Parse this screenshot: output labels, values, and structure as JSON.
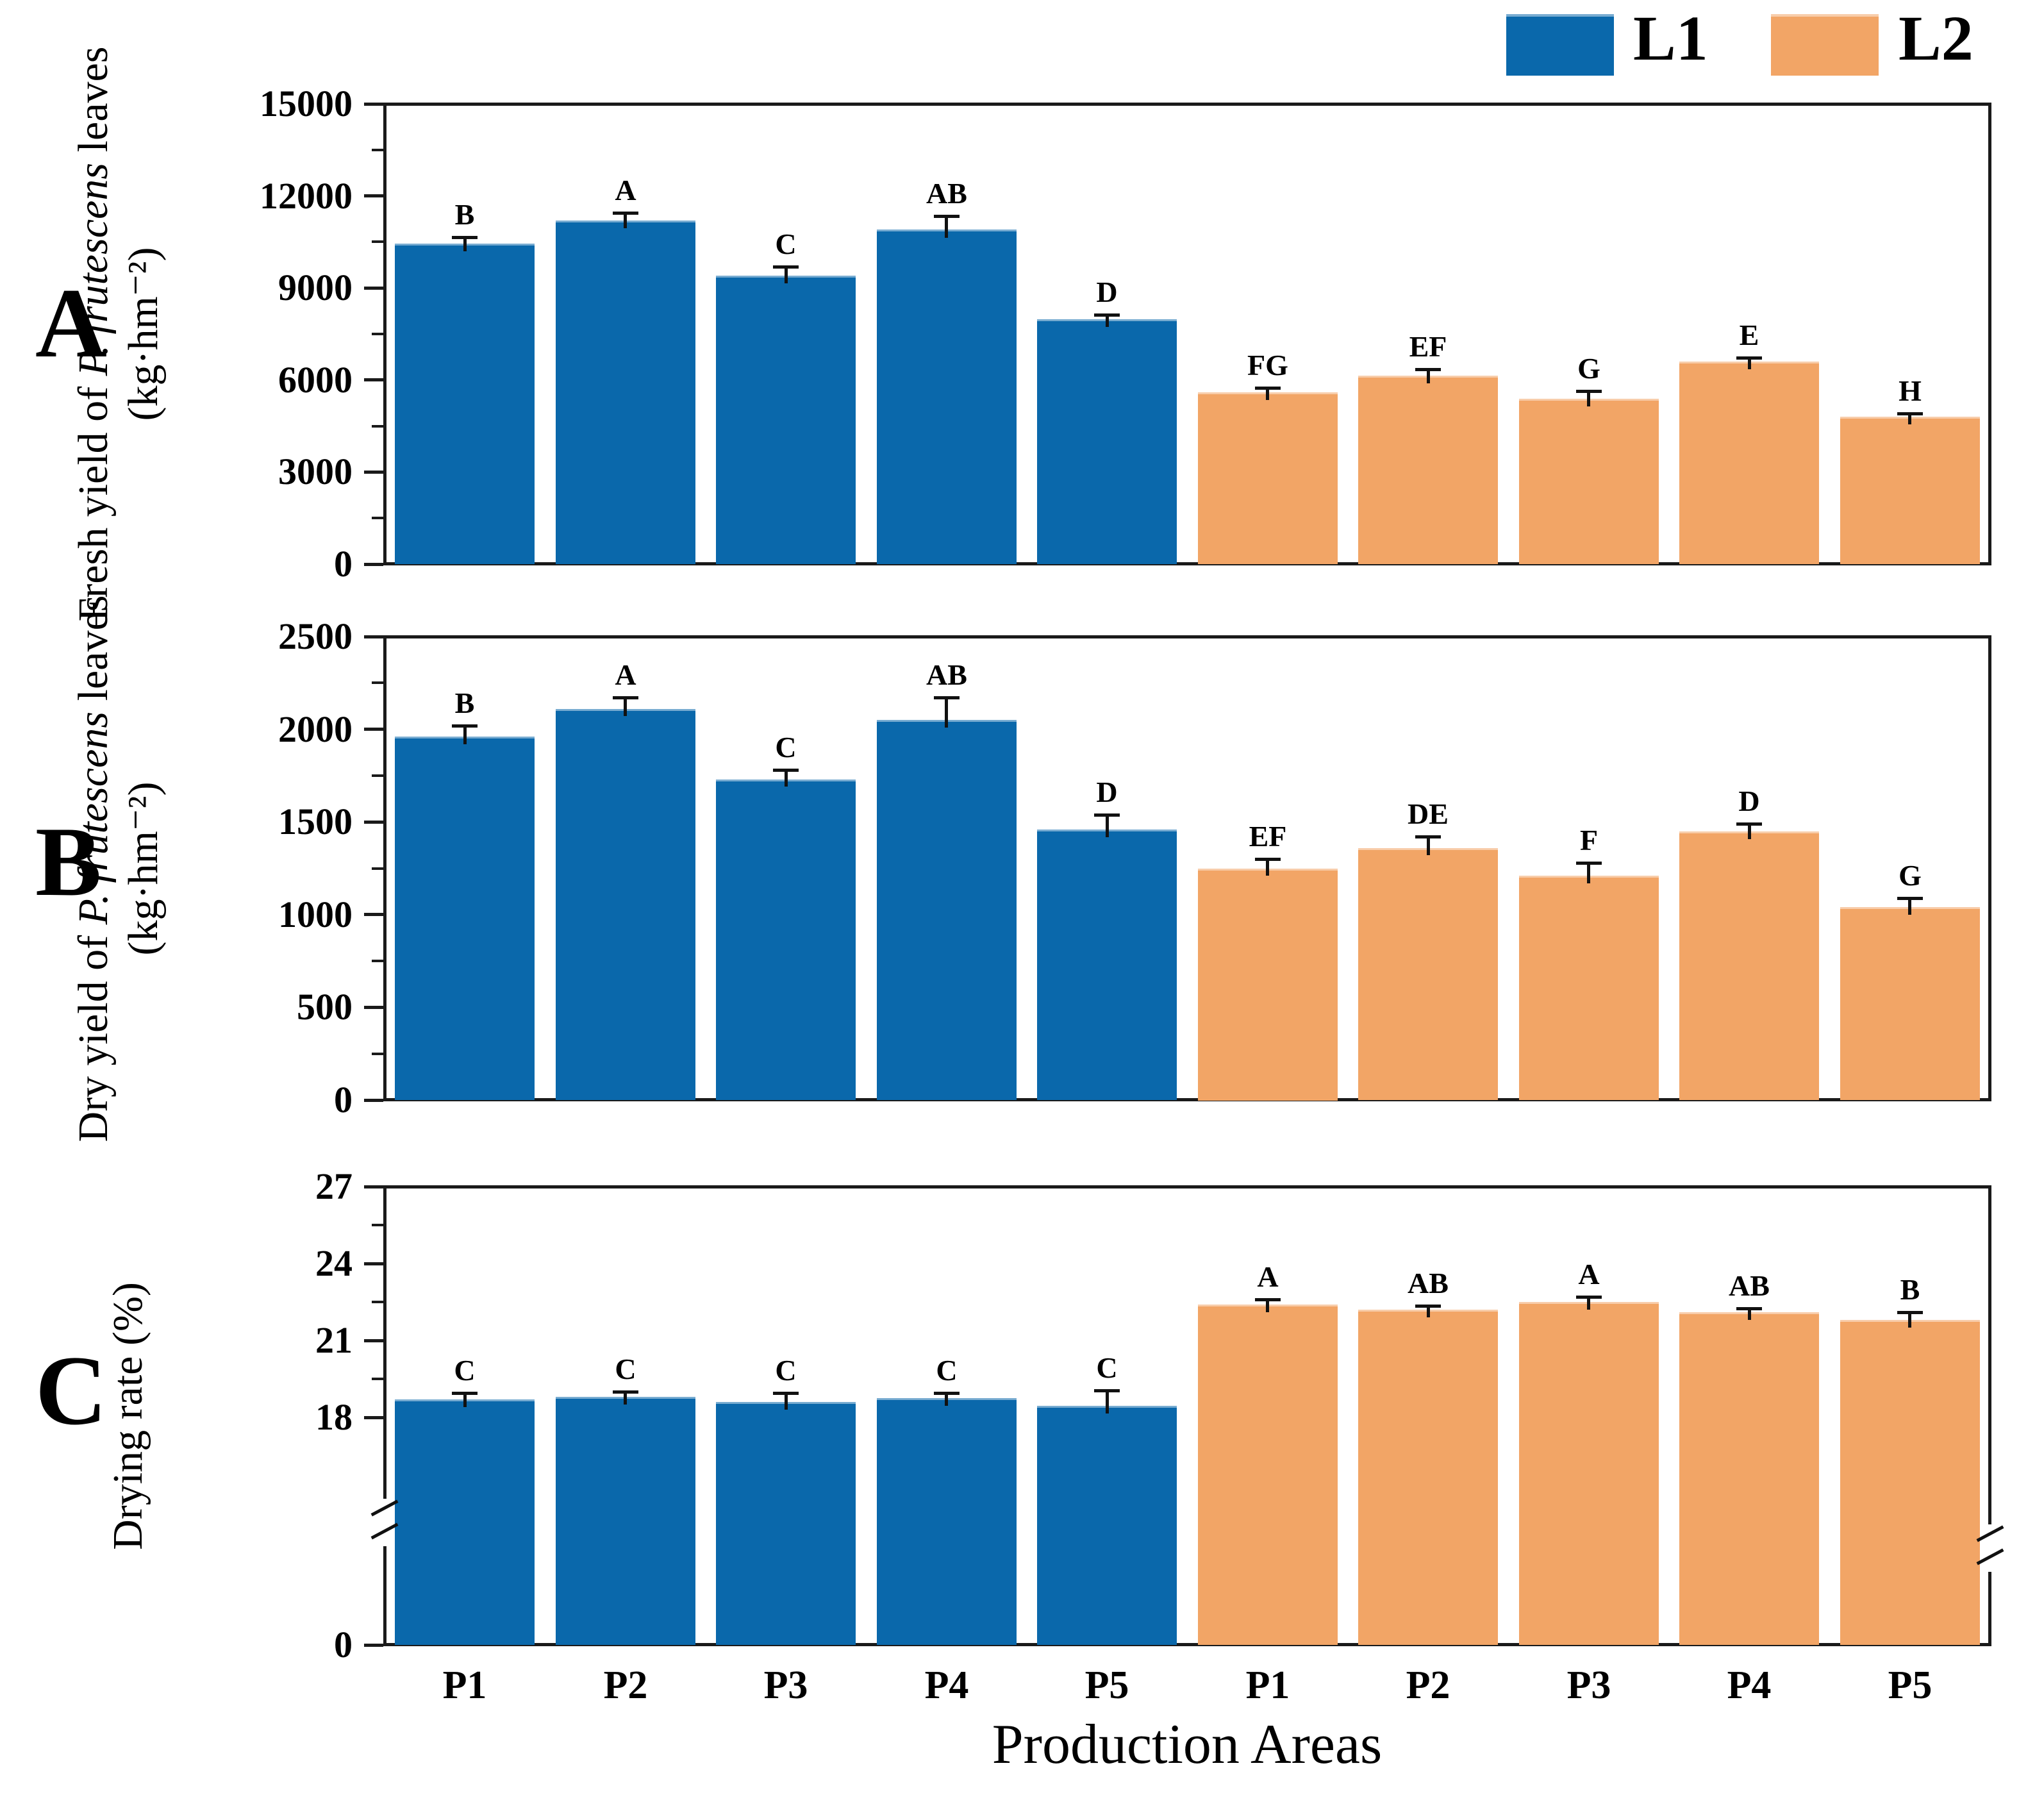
{
  "x_axis_title": "Production Areas",
  "legend": {
    "items": [
      {
        "label": "L1",
        "color": "#0a68ab"
      },
      {
        "label": "L2",
        "color": "#f2a566"
      }
    ]
  },
  "colors": {
    "l1_blue": "#0a68ab",
    "l2_orange": "#f2a566",
    "axis_black": "#1a1a1a"
  },
  "chart_data": [
    {
      "id": "A",
      "type": "bar",
      "panel_label": "A",
      "y_label_lines": [
        [
          {
            "text": "Fresh yield of "
          },
          {
            "text": "P. frutescens",
            "italic": true
          },
          {
            "text": " leaves"
          }
        ],
        [
          {
            "text": "(kg·hm⁻²)"
          }
        ]
      ],
      "categories": [
        "P1",
        "P2",
        "P3",
        "P4",
        "P5"
      ],
      "ylim": [
        0,
        15000
      ],
      "y_ticks": [
        0,
        3000,
        6000,
        9000,
        12000,
        15000
      ],
      "grid": false,
      "legend_position": "top-right",
      "series": [
        {
          "name": "L1",
          "color": "#0a68ab",
          "values": [
            10450,
            11200,
            9400,
            10900,
            7980
          ],
          "errors": [
            200,
            250,
            300,
            450,
            150
          ],
          "letters": [
            "B",
            "A",
            "C",
            "AB",
            "D"
          ]
        },
        {
          "name": "L2",
          "color": "#f2a566",
          "values": [
            5600,
            6150,
            5400,
            6600,
            4800
          ],
          "errors": [
            150,
            200,
            250,
            120,
            100
          ],
          "letters": [
            "FG",
            "EF",
            "G",
            "E",
            "H"
          ]
        }
      ]
    },
    {
      "id": "B",
      "type": "bar",
      "panel_label": "B",
      "y_label_lines": [
        [
          {
            "text": "Dry yield of "
          },
          {
            "text": "P. frutescens",
            "italic": true
          },
          {
            "text": " leaves"
          }
        ],
        [
          {
            "text": "(kg·hm⁻²)"
          }
        ]
      ],
      "categories": [
        "P1",
        "P2",
        "P3",
        "P4",
        "P5"
      ],
      "ylim": [
        0,
        2500
      ],
      "y_ticks": [
        0,
        500,
        1000,
        1500,
        2000,
        2500
      ],
      "grid": false,
      "series": [
        {
          "name": "L1",
          "color": "#0a68ab",
          "values": [
            1960,
            2110,
            1730,
            2050,
            1460
          ],
          "errors": [
            60,
            60,
            50,
            120,
            80
          ],
          "letters": [
            "B",
            "A",
            "C",
            "AB",
            "D"
          ]
        },
        {
          "name": "L2",
          "color": "#f2a566",
          "values": [
            1250,
            1360,
            1210,
            1450,
            1040
          ],
          "errors": [
            50,
            60,
            70,
            40,
            50
          ],
          "letters": [
            "EF",
            "DE",
            "F",
            "D",
            "G"
          ]
        }
      ]
    },
    {
      "id": "C",
      "type": "bar",
      "panel_label": "C",
      "y_label_lines": [
        [
          {
            "text": "Drying rate (%)"
          }
        ]
      ],
      "categories": [
        "P1",
        "P2",
        "P3",
        "P4",
        "P5"
      ],
      "ylim": [
        0,
        27
      ],
      "y_ticks": [
        0,
        18,
        21,
        24,
        27
      ],
      "y_break": {
        "upper_min": 18,
        "upper_max": 27
      },
      "grid": false,
      "series": [
        {
          "name": "L1",
          "color": "#0a68ab",
          "values": [
            18.7,
            18.8,
            18.6,
            18.75,
            18.45
          ],
          "errors": [
            0.25,
            0.2,
            0.35,
            0.2,
            0.6
          ],
          "letters": [
            "C",
            "C",
            "C",
            "C",
            "C"
          ]
        },
        {
          "name": "L2",
          "color": "#f2a566",
          "values": [
            22.4,
            22.2,
            22.5,
            22.1,
            21.8
          ],
          "errors": [
            0.2,
            0.15,
            0.2,
            0.15,
            0.3
          ],
          "letters": [
            "A",
            "AB",
            "A",
            "AB",
            "B"
          ]
        }
      ]
    }
  ]
}
